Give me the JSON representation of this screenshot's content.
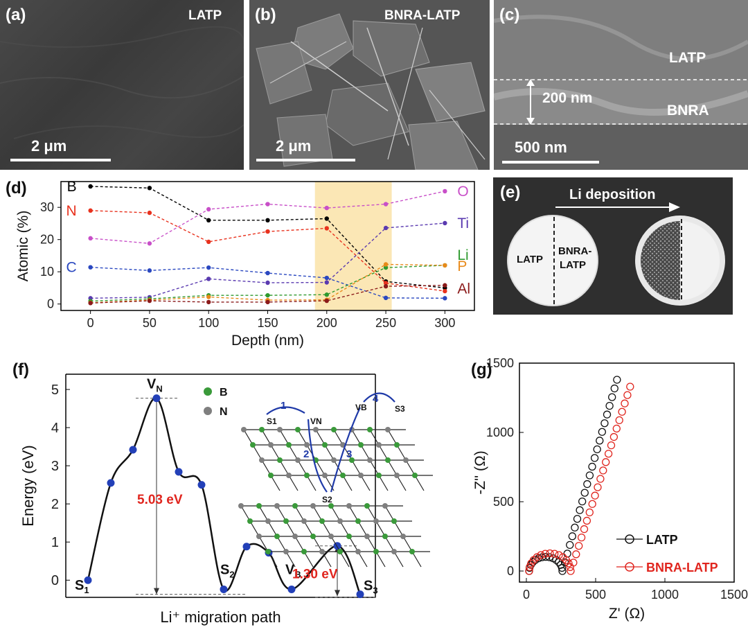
{
  "panels": {
    "a": {
      "label": "(a)",
      "name": "LATP",
      "scale": "2 μm"
    },
    "b": {
      "label": "(b)",
      "name": "BNRA-LATP",
      "scale": "2 μm"
    },
    "c": {
      "label": "(c)",
      "upper": "LATP",
      "lower": "BNRA",
      "thickness": "200 nm",
      "scale": "500 nm"
    },
    "d": {
      "label": "(d)"
    },
    "e": {
      "label": "(e)",
      "arrow_text": "Li deposition",
      "left_text": "LATP",
      "right_text_1": "BNRA-",
      "right_text_2": "LATP"
    },
    "f": {
      "label": "(f)"
    },
    "g": {
      "label": "(g)"
    }
  },
  "chart_data": [
    {
      "id": "d",
      "type": "line",
      "xlabel": "Depth (nm)",
      "ylabel": "Atomic (%)",
      "x": [
        0,
        50,
        100,
        150,
        200,
        250,
        300
      ],
      "xlim": [
        -25,
        325
      ],
      "ylim": [
        -2,
        38
      ],
      "xticks": [
        "0",
        "50",
        "100",
        "150",
        "200",
        "250",
        "300"
      ],
      "yticks": [
        "0",
        "10",
        "20",
        "30"
      ],
      "highlight_range": [
        190,
        255
      ],
      "series": [
        {
          "name": "B",
          "color": "#000000",
          "values": [
            36.5,
            36,
            26,
            26,
            26.5,
            7,
            5
          ]
        },
        {
          "name": "N",
          "color": "#e8321e",
          "values": [
            29,
            28.3,
            19.3,
            22.5,
            23.5,
            6.5,
            4
          ]
        },
        {
          "name": "O",
          "color": "#c84fc8",
          "values": [
            20.4,
            18.8,
            29.4,
            31,
            29.8,
            31,
            35
          ]
        },
        {
          "name": "Ti",
          "color": "#5a3ab0",
          "values": [
            1.8,
            2.1,
            7.8,
            6.6,
            6.7,
            23.6,
            25.1
          ]
        },
        {
          "name": "C",
          "color": "#2a48c0",
          "values": [
            11.4,
            10.4,
            11.3,
            9.6,
            8.1,
            1.9,
            1.8
          ]
        },
        {
          "name": "Li",
          "color": "#2f9a2f",
          "values": [
            0.9,
            1.6,
            2.7,
            2.7,
            2.9,
            11.3,
            12
          ]
        },
        {
          "name": "P",
          "color": "#e88a1a",
          "values": [
            0.4,
            1.2,
            2.2,
            1.2,
            1.3,
            12.3,
            12
          ]
        },
        {
          "name": "Al",
          "color": "#8b1a1a",
          "values": [
            0.3,
            1.0,
            0.6,
            0.6,
            1.0,
            5.5,
            5.8
          ]
        }
      ]
    },
    {
      "id": "f",
      "type": "line",
      "xlabel": "Li⁺ migration path",
      "ylabel": "Energy (eV)",
      "ylim": [
        -0.45,
        5.4
      ],
      "yticks": [
        "0",
        "1",
        "2",
        "3",
        "4",
        "5"
      ],
      "energies": [
        0,
        2.55,
        3.42,
        4.77,
        2.84,
        2.5,
        -0.24,
        0.88,
        0.72,
        -0.24,
        0.9,
        -0.37
      ],
      "points": [
        "S1",
        "",
        "",
        "VN",
        "",
        "",
        "S2",
        "",
        "",
        "VB",
        "",
        "S3"
      ],
      "barrier_1": "5.03 eV",
      "barrier_2": "1.30 eV",
      "legend": [
        "B",
        "N"
      ],
      "legend_colors": [
        "#3a9a3a",
        "#7f7f7f"
      ],
      "path_labels": [
        "1",
        "2",
        "3",
        "4"
      ],
      "site_labels": [
        "S1",
        "VN",
        "S2",
        "VB",
        "S3"
      ]
    },
    {
      "id": "g",
      "type": "scatter",
      "xlabel": "Z' (Ω)",
      "ylabel": "-Z'' (Ω)",
      "xlim": [
        -50,
        1500
      ],
      "ylim": [
        -80,
        1500
      ],
      "xticks": [
        "0",
        "500",
        "1000",
        "1500"
      ],
      "yticks": [
        "0",
        "500",
        "1000",
        "1500"
      ],
      "series": [
        {
          "name": "LATP",
          "color": "#111111"
        },
        {
          "name": "BNRA-LATP",
          "color": "#e0251e"
        }
      ]
    }
  ]
}
